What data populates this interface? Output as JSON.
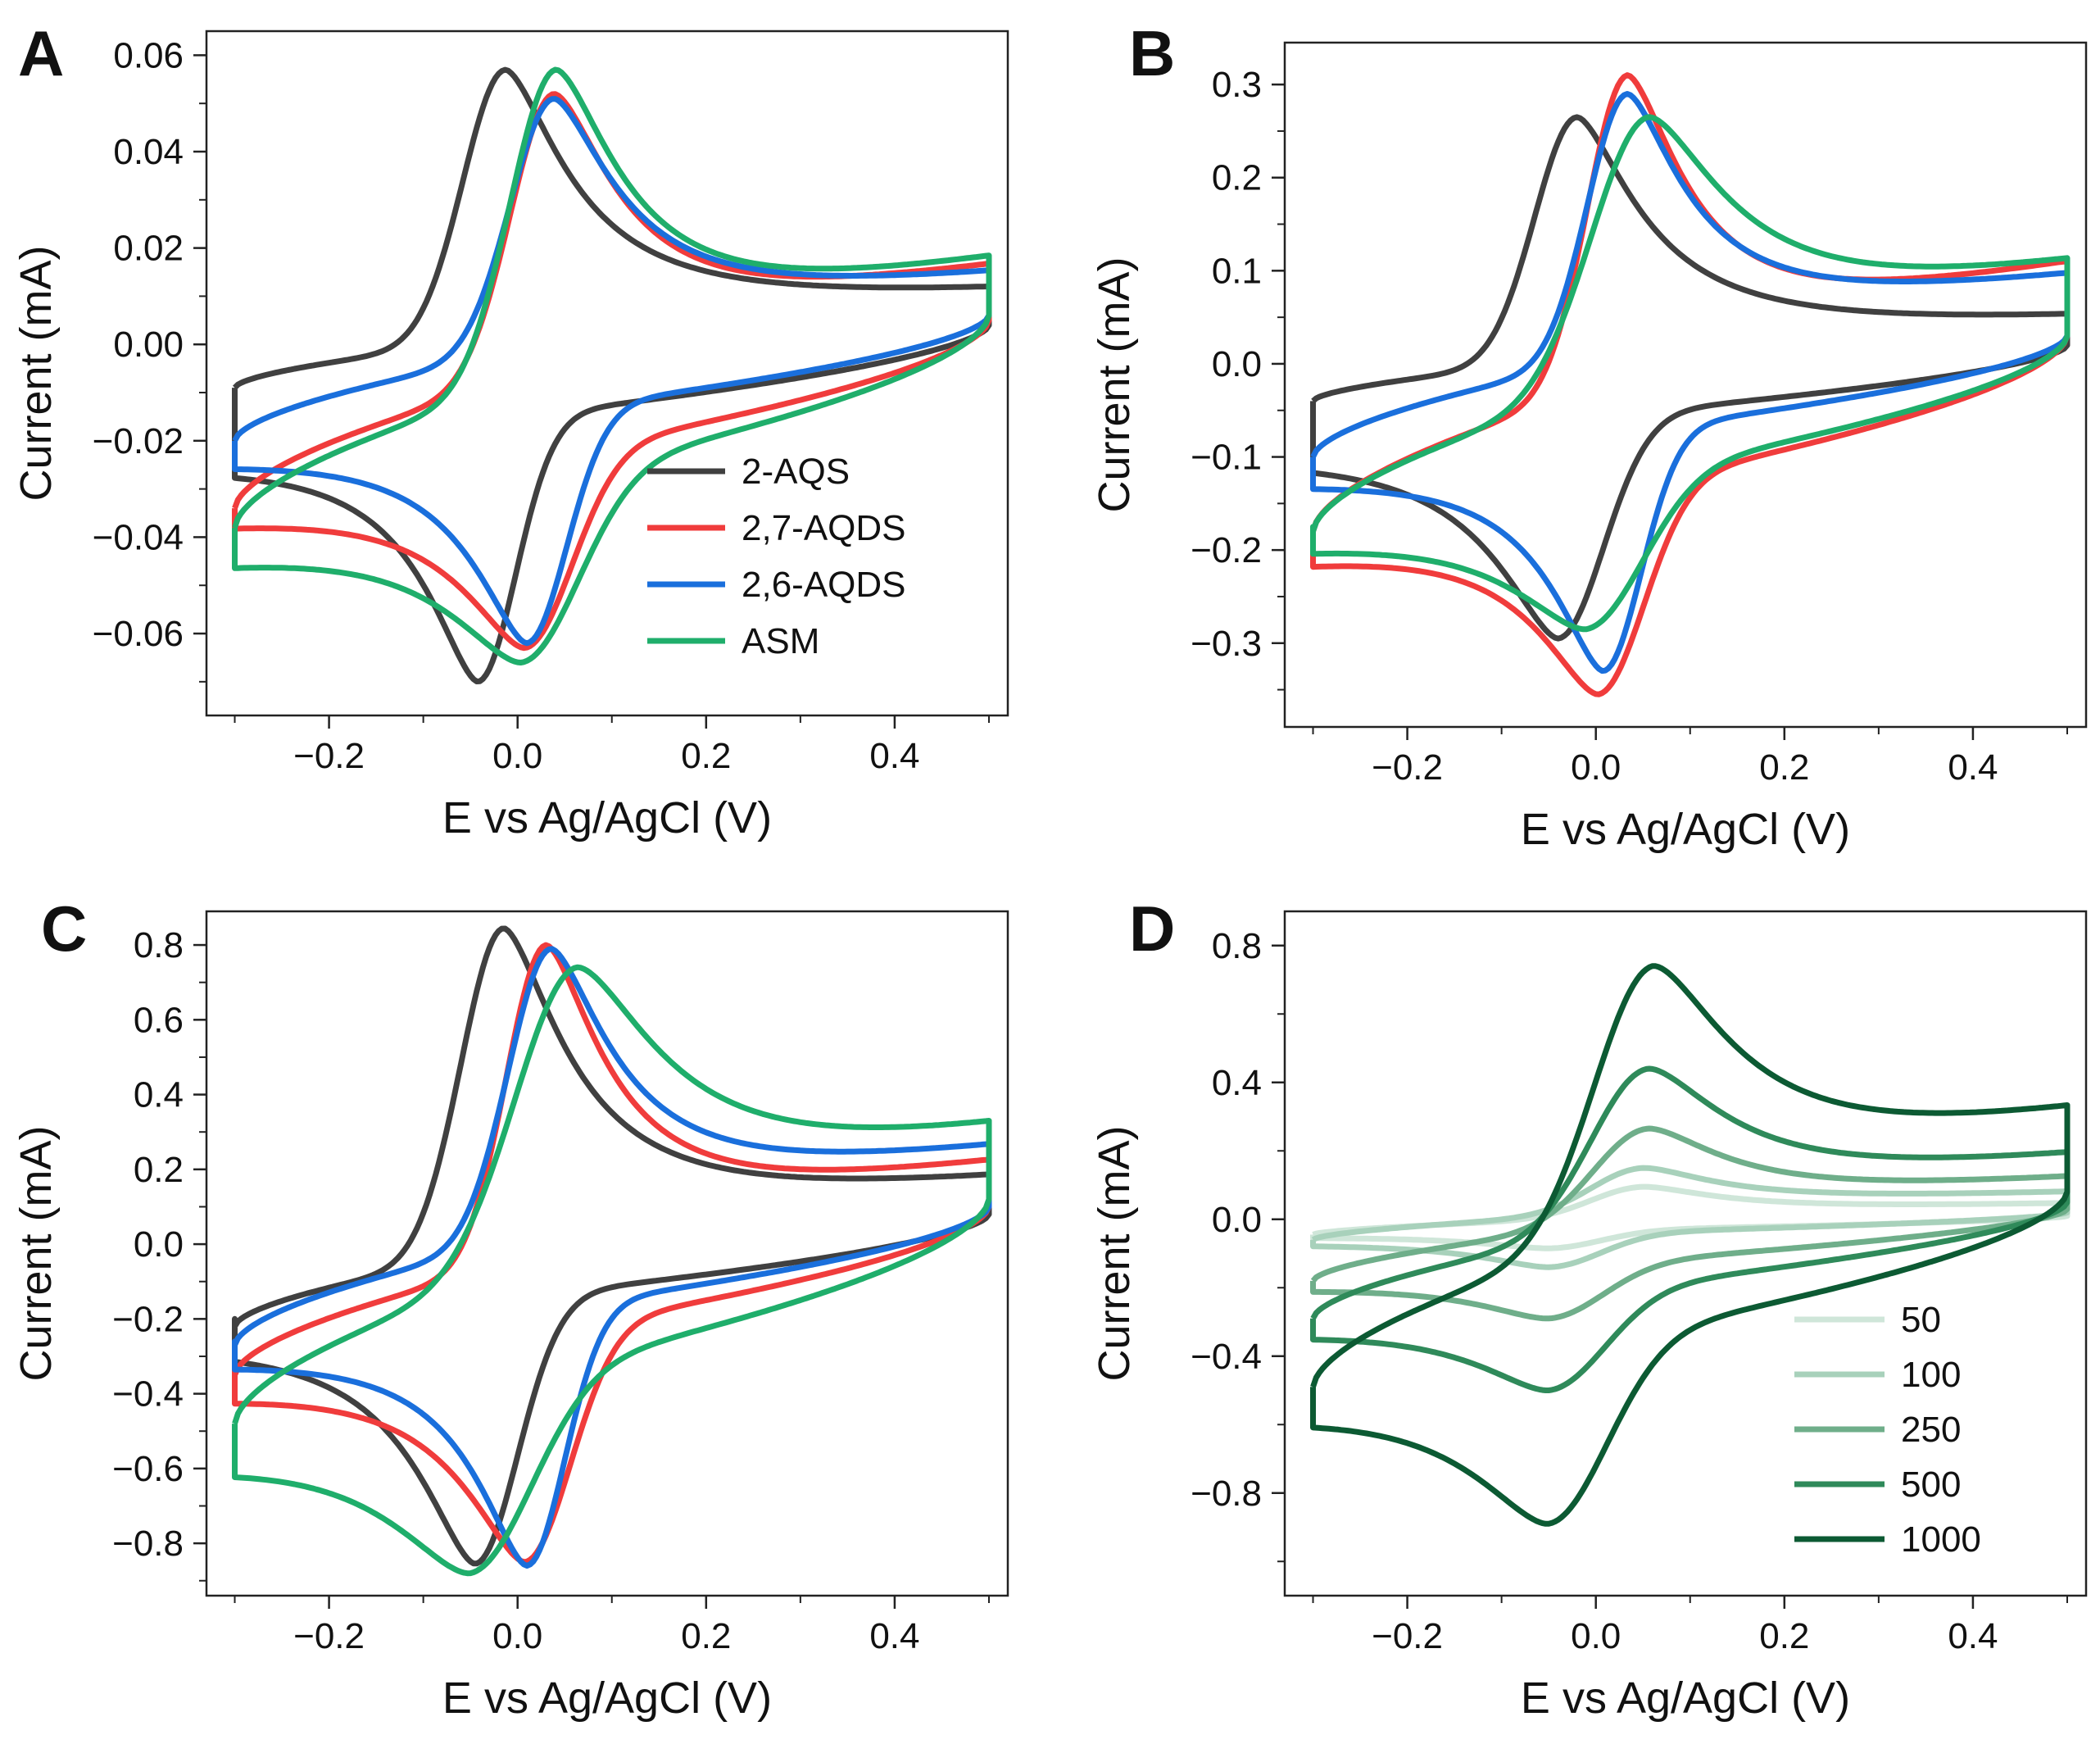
{
  "figure": {
    "x_axis_label": "E vs Ag/AgCl (V)",
    "y_axis_label": "Current (mA)"
  },
  "chart_data": [
    {
      "panel": "A",
      "type": "line",
      "subtype": "cyclic-voltammogram",
      "xlabel": "E vs Ag/AgCl (V)",
      "ylabel": "Current (mA)",
      "xlim": [
        -0.33,
        0.52
      ],
      "ylim": [
        -0.077,
        0.065
      ],
      "xticks": [
        -0.2,
        0.0,
        0.2,
        0.4
      ],
      "yticks": [
        0.06,
        0.04,
        0.02,
        0.0,
        -0.02,
        -0.04,
        -0.06
      ],
      "xtick_labels": [
        "−0.2",
        "0.0",
        "0.2",
        "0.4"
      ],
      "ytick_labels": [
        "0.06",
        "0.04",
        "0.02",
        "0.00",
        "−0.02",
        "−0.04",
        "−0.06"
      ],
      "legend_position": "bottom-right",
      "series": [
        {
          "name": "2-AQS",
          "color": "#404040",
          "cv": {
            "e_pa": -0.013,
            "i_pa": 0.057,
            "e_pc": -0.042,
            "i_pc": -0.07,
            "w_a": 0.045,
            "w_c": 0.04,
            "i_cap_ox_start": -0.009,
            "i_cap_ox_end": 0.009,
            "i_cap_red_end": 0.004,
            "i_cap_red_start": -0.021,
            "tail_red": -0.02
          }
        },
        {
          "name": "2,7-AQDS",
          "color": "#f03c3c",
          "cv": {
            "e_pa": 0.038,
            "i_pa": 0.052,
            "e_pc": 0.008,
            "i_pc": -0.063,
            "w_a": 0.046,
            "w_c": 0.05,
            "i_cap_ox_start": -0.034,
            "i_cap_ox_end": 0.013,
            "i_cap_red_end": 0.005,
            "i_cap_red_start": -0.033,
            "tail_red": -0.035
          }
        },
        {
          "name": "2,6-AQDS",
          "color": "#1a6fdc",
          "cv": {
            "e_pa": 0.038,
            "i_pa": 0.051,
            "e_pc": 0.01,
            "i_pc": -0.062,
            "w_a": 0.046,
            "w_c": 0.042,
            "i_cap_ox_start": -0.02,
            "i_cap_ox_end": 0.012,
            "i_cap_red_end": 0.006,
            "i_cap_red_start": -0.021,
            "tail_red": -0.02
          }
        },
        {
          "name": "ASM",
          "color": "#1fae6b",
          "cv": {
            "e_pa": 0.04,
            "i_pa": 0.057,
            "e_pc": 0.005,
            "i_pc": -0.066,
            "w_a": 0.048,
            "w_c": 0.06,
            "i_cap_ox_start": -0.038,
            "i_cap_ox_end": 0.014,
            "i_cap_red_end": 0.006,
            "i_cap_red_start": -0.04,
            "tail_red": -0.04
          }
        }
      ]
    },
    {
      "panel": "B",
      "type": "line",
      "subtype": "cyclic-voltammogram",
      "xlabel": "E vs Ag/AgCl (V)",
      "ylabel": "Current (mA)",
      "xlim": [
        -0.33,
        0.52
      ],
      "ylim": [
        -0.39,
        0.345
      ],
      "xticks": [
        -0.2,
        0.0,
        0.2,
        0.4
      ],
      "yticks": [
        0.3,
        0.2,
        0.1,
        0.0,
        -0.1,
        -0.2,
        -0.3
      ],
      "xtick_labels": [
        "−0.2",
        "0.0",
        "0.2",
        "0.4"
      ],
      "ytick_labels": [
        "0.3",
        "0.2",
        "0.1",
        "0.0",
        "−0.1",
        "−0.2",
        "−0.3"
      ],
      "series": [
        {
          "name": "2-AQS",
          "color": "#404040",
          "cv": {
            "e_pa": -0.02,
            "i_pa": 0.265,
            "e_pc": -0.04,
            "i_pc": -0.295,
            "w_a": 0.045,
            "w_c": 0.048,
            "i_cap_ox_start": -0.04,
            "i_cap_ox_end": 0.04,
            "i_cap_red_end": 0.02,
            "i_cap_red_start": -0.08,
            "tail_red": -0.08
          }
        },
        {
          "name": "2,7-AQDS",
          "color": "#f03c3c",
          "cv": {
            "e_pa": 0.033,
            "i_pa": 0.31,
            "e_pc": 0.003,
            "i_pc": -0.355,
            "w_a": 0.042,
            "w_c": 0.048,
            "i_cap_ox_start": -0.18,
            "i_cap_ox_end": 0.092,
            "i_cap_red_end": 0.03,
            "i_cap_red_start": -0.19,
            "tail_red": -0.19
          }
        },
        {
          "name": "2,6-AQDS",
          "color": "#1a6fdc",
          "cv": {
            "e_pa": 0.033,
            "i_pa": 0.29,
            "e_pc": 0.008,
            "i_pc": -0.33,
            "w_a": 0.042,
            "w_c": 0.04,
            "i_cap_ox_start": -0.1,
            "i_cap_ox_end": 0.082,
            "i_cap_red_end": 0.03,
            "i_cap_red_start": -0.11,
            "tail_red": -0.11
          }
        },
        {
          "name": "ASM",
          "color": "#1fae6b",
          "cv": {
            "e_pa": 0.055,
            "i_pa": 0.265,
            "e_pc": -0.01,
            "i_pc": -0.285,
            "w_a": 0.06,
            "w_c": 0.06,
            "i_cap_ox_start": -0.18,
            "i_cap_ox_end": 0.085,
            "i_cap_red_end": 0.03,
            "i_cap_red_start": -0.175,
            "tail_red": -0.175
          }
        }
      ]
    },
    {
      "panel": "C",
      "type": "line",
      "subtype": "cyclic-voltammogram",
      "xlabel": "E vs Ag/AgCl (V)",
      "ylabel": "Current (mA)",
      "xlim": [
        -0.33,
        0.52
      ],
      "ylim": [
        -0.94,
        0.89
      ],
      "xticks": [
        -0.2,
        0.0,
        0.2,
        0.4
      ],
      "yticks": [
        0.8,
        0.6,
        0.4,
        0.2,
        0.0,
        -0.2,
        -0.4,
        -0.6,
        -0.8
      ],
      "xtick_labels": [
        "−0.2",
        "0.0",
        "0.2",
        "0.4"
      ],
      "ytick_labels": [
        "0.8",
        "0.6",
        "0.4",
        "0.2",
        "0.0",
        "−0.2",
        "−0.4",
        "−0.6",
        "−0.8"
      ],
      "series": [
        {
          "name": "2-AQS",
          "color": "#404040",
          "cv": {
            "e_pa": -0.015,
            "i_pa": 0.845,
            "e_pc": -0.045,
            "i_pc": -0.855,
            "w_a": 0.045,
            "w_c": 0.045,
            "i_cap_ox_start": -0.22,
            "i_cap_ox_end": 0.14,
            "i_cap_red_end": 0.08,
            "i_cap_red_start": -0.21,
            "tail_red": -0.2
          }
        },
        {
          "name": "2,7-AQDS",
          "color": "#f03c3c",
          "cv": {
            "e_pa": 0.03,
            "i_pa": 0.8,
            "e_pc": 0.008,
            "i_pc": -0.85,
            "w_a": 0.042,
            "w_c": 0.048,
            "i_cap_ox_start": -0.35,
            "i_cap_ox_end": 0.18,
            "i_cap_red_end": 0.1,
            "i_cap_red_start": -0.35,
            "tail_red": -0.33
          }
        },
        {
          "name": "2,6-AQDS",
          "color": "#1a6fdc",
          "cv": {
            "e_pa": 0.035,
            "i_pa": 0.79,
            "e_pc": 0.01,
            "i_pc": -0.86,
            "w_a": 0.045,
            "w_c": 0.04,
            "i_cap_ox_start": -0.27,
            "i_cap_ox_end": 0.22,
            "i_cap_red_end": 0.1,
            "i_cap_red_start": -0.27,
            "tail_red": -0.26
          }
        },
        {
          "name": "ASM",
          "color": "#1fae6b",
          "cv": {
            "e_pa": 0.062,
            "i_pa": 0.74,
            "e_pc": -0.05,
            "i_pc": -0.88,
            "w_a": 0.065,
            "w_c": 0.065,
            "i_cap_ox_start": -0.48,
            "i_cap_ox_end": 0.24,
            "i_cap_red_end": 0.12,
            "i_cap_red_start": -0.5,
            "tail_red": -0.5
          }
        }
      ]
    },
    {
      "panel": "D",
      "type": "line",
      "subtype": "cyclic-voltammogram",
      "xlabel": "E vs Ag/AgCl (V)",
      "ylabel": "Current (mA)",
      "xlim": [
        -0.33,
        0.52
      ],
      "ylim": [
        -1.1,
        0.9
      ],
      "xticks": [
        -0.2,
        0.0,
        0.2,
        0.4
      ],
      "yticks": [
        0.8,
        0.4,
        0.0,
        -0.4,
        -0.8
      ],
      "xtick_labels": [
        "−0.2",
        "0.0",
        "0.2",
        "0.4"
      ],
      "ytick_labels": [
        "0.8",
        "0.4",
        "0.0",
        "−0.4",
        "−0.8"
      ],
      "legend_position": "bottom-right",
      "series": [
        {
          "name": "50",
          "color": "#cfe6d9",
          "cv": {
            "e_pa": 0.05,
            "i_pa": 0.095,
            "e_pc": -0.05,
            "i_pc": -0.085,
            "w_a": 0.055,
            "w_c": 0.055,
            "i_cap_ox_start": -0.045,
            "i_cap_ox_end": 0.04,
            "i_cap_red_end": 0.01,
            "i_cap_red_start": -0.045,
            "tail_red": -0.045
          }
        },
        {
          "name": "100",
          "color": "#a8d1bb",
          "cv": {
            "e_pa": 0.05,
            "i_pa": 0.15,
            "e_pc": -0.05,
            "i_pc": -0.14,
            "w_a": 0.055,
            "w_c": 0.055,
            "i_cap_ox_start": -0.06,
            "i_cap_ox_end": 0.07,
            "i_cap_red_end": 0.02,
            "i_cap_red_start": -0.06,
            "tail_red": -0.06
          }
        },
        {
          "name": "250",
          "color": "#6fae8a",
          "cv": {
            "e_pa": 0.055,
            "i_pa": 0.265,
            "e_pc": -0.05,
            "i_pc": -0.29,
            "w_a": 0.058,
            "w_c": 0.058,
            "i_cap_ox_start": -0.18,
            "i_cap_ox_end": 0.1,
            "i_cap_red_end": 0.03,
            "i_cap_red_start": -0.18,
            "tail_red": -0.18
          }
        },
        {
          "name": "500",
          "color": "#2f8a5a",
          "cv": {
            "e_pa": 0.055,
            "i_pa": 0.44,
            "e_pc": -0.05,
            "i_pc": -0.5,
            "w_a": 0.06,
            "w_c": 0.06,
            "i_cap_ox_start": -0.29,
            "i_cap_ox_end": 0.15,
            "i_cap_red_end": 0.05,
            "i_cap_red_start": -0.29,
            "tail_red": -0.29
          }
        },
        {
          "name": "1000",
          "color": "#0c5a33",
          "cv": {
            "e_pa": 0.06,
            "i_pa": 0.74,
            "e_pc": -0.05,
            "i_pc": -0.89,
            "w_a": 0.062,
            "w_c": 0.062,
            "i_cap_ox_start": -0.49,
            "i_cap_ox_end": 0.25,
            "i_cap_red_end": 0.08,
            "i_cap_red_start": -0.49,
            "tail_red": -0.49
          }
        }
      ]
    }
  ]
}
